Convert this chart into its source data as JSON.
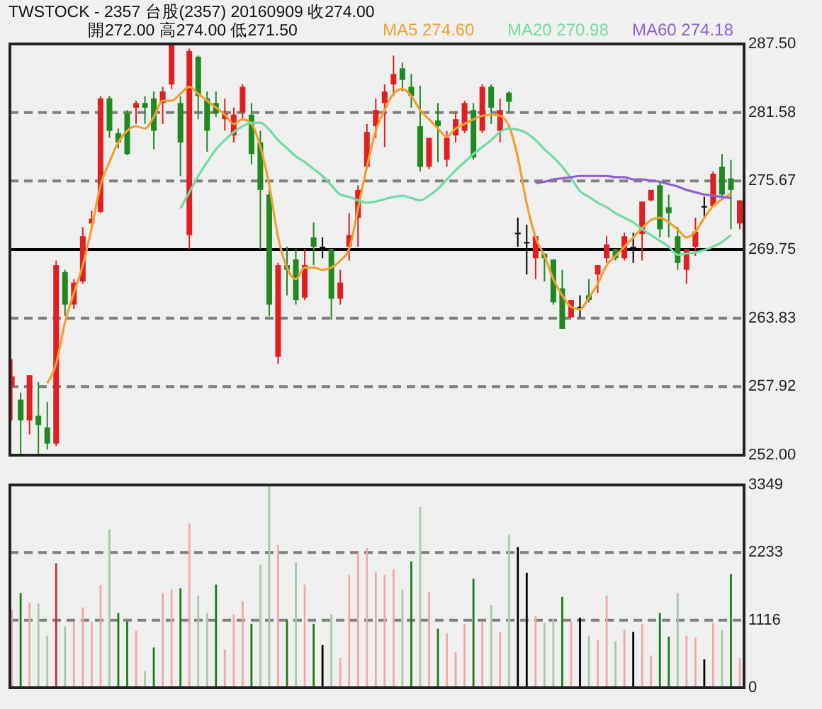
{
  "chart_data": [
    {
      "type": "candlestick",
      "title": "TWSTOCK - 2357 台股(2357) 20160909 收274.00",
      "subtitle": "開272.00 高274.00 低271.50",
      "categories": [
        null,
        null,
        null,
        null,
        null,
        null,
        null,
        null,
        null,
        null,
        null,
        null,
        null,
        null,
        null,
        null,
        null,
        null,
        null,
        null,
        null,
        null,
        null,
        null,
        null,
        null,
        null,
        null,
        null,
        null,
        null,
        null,
        null,
        null,
        null,
        null,
        null,
        null,
        null,
        null,
        null,
        null,
        null,
        null,
        null,
        null,
        null,
        null,
        null,
        null,
        null,
        null,
        null,
        null,
        null,
        null,
        null,
        null,
        null,
        null,
        null,
        null,
        null,
        null,
        null,
        null,
        null,
        null,
        null,
        null,
        null,
        null,
        null,
        null,
        null,
        null,
        null,
        null,
        null,
        null,
        null,
        null,
        null
      ],
      "ohlc": [
        [
          258.0,
          260.3,
          255.0,
          258.8
        ],
        [
          256.8,
          257.4,
          252.0,
          255.0
        ],
        [
          255.0,
          258.9,
          253.8,
          258.9
        ],
        [
          255.4,
          258.3,
          252.0,
          254.6
        ],
        [
          254.4,
          256.6,
          252.5,
          253.0
        ],
        [
          253.0,
          268.8,
          252.8,
          268.4
        ],
        [
          267.8,
          268.0,
          264.0,
          265.0
        ],
        [
          265.0,
          267.2,
          264.6,
          266.9
        ],
        [
          267.0,
          271.7,
          266.8,
          270.9
        ],
        [
          272.0,
          273.1,
          271.7,
          272.4
        ],
        [
          273.0,
          283.0,
          272.9,
          282.8
        ],
        [
          282.8,
          283.0,
          279.4,
          280.0
        ],
        [
          279.8,
          280.2,
          278.5,
          279.0
        ],
        [
          281.5,
          281.8,
          277.9,
          278.0
        ],
        [
          282.0,
          282.6,
          280.6,
          282.4
        ],
        [
          282.4,
          283.0,
          280.6,
          282.0
        ],
        [
          282.8,
          283.4,
          278.4,
          280.0
        ],
        [
          282.4,
          283.8,
          280.6,
          283.4
        ],
        [
          284.0,
          287.5,
          283.6,
          287.4
        ],
        [
          282.4,
          283.0,
          276.1,
          279.0
        ],
        [
          271.0,
          287.1,
          269.8,
          286.9
        ],
        [
          286.4,
          286.5,
          281.0,
          283.0
        ],
        [
          282.8,
          283.4,
          278.2,
          280.0
        ],
        [
          282.4,
          283.4,
          281.2,
          281.5
        ],
        [
          281.0,
          282.8,
          280.0,
          281.5
        ],
        [
          279.6,
          282.0,
          279.0,
          281.4
        ],
        [
          281.6,
          284.0,
          281.0,
          283.8
        ],
        [
          281.4,
          282.4,
          277.1,
          278.0
        ],
        [
          279.0,
          280.0,
          269.8,
          274.9
        ],
        [
          274.5,
          274.9,
          264.0,
          265.0
        ],
        [
          260.5,
          268.6,
          259.9,
          268.4
        ],
        [
          268.4,
          270.0,
          265.8,
          268.0
        ],
        [
          268.9,
          269.8,
          265.0,
          265.4
        ],
        [
          265.6,
          269.8,
          265.4,
          268.4
        ],
        [
          270.8,
          272.1,
          268.4,
          270.0
        ],
        [
          270.0,
          270.8,
          269.0,
          270.0
        ],
        [
          269.8,
          269.8,
          263.7,
          265.5
        ],
        [
          265.5,
          268.0,
          265.0,
          266.9
        ],
        [
          270.0,
          272.9,
          268.8,
          271.0
        ],
        [
          272.5,
          275.3,
          270.0,
          274.9
        ],
        [
          276.9,
          280.6,
          276.7,
          279.9
        ],
        [
          280.4,
          282.8,
          279.4,
          281.8
        ],
        [
          282.4,
          284.0,
          278.6,
          283.4
        ],
        [
          284.0,
          286.5,
          283.0,
          284.9
        ],
        [
          285.4,
          285.9,
          283.4,
          284.4
        ],
        [
          283.8,
          284.9,
          282.0,
          283.0
        ],
        [
          280.4,
          283.9,
          276.5,
          276.9
        ],
        [
          276.9,
          279.4,
          276.7,
          279.4
        ],
        [
          280.9,
          282.4,
          277.3,
          280.4
        ],
        [
          277.5,
          280.0,
          276.9,
          279.4
        ],
        [
          279.6,
          281.6,
          279.0,
          281.0
        ],
        [
          280.0,
          282.6,
          279.8,
          282.4
        ],
        [
          281.8,
          282.4,
          277.5,
          277.7
        ],
        [
          280.0,
          284.0,
          279.8,
          283.8
        ],
        [
          283.8,
          284.0,
          280.6,
          282.0
        ],
        [
          280.0,
          282.8,
          279.0,
          281.8
        ],
        [
          283.3,
          283.4,
          281.6,
          282.5
        ],
        [
          271.2,
          272.5,
          270.0,
          271.2
        ],
        [
          270.4,
          271.9,
          267.6,
          270.4
        ],
        [
          269.0,
          270.9,
          267.2,
          270.9
        ],
        [
          269.4,
          269.4,
          267.0,
          269.0
        ],
        [
          268.9,
          268.9,
          265.0,
          265.2
        ],
        [
          266.4,
          268.0,
          262.9,
          262.9
        ],
        [
          263.9,
          265.4,
          263.9,
          265.4
        ],
        [
          264.8,
          265.8,
          263.9,
          264.8
        ],
        [
          265.8,
          267.2,
          265.2,
          265.4
        ],
        [
          267.6,
          268.4,
          266.0,
          268.4
        ],
        [
          269.0,
          270.9,
          268.6,
          270.2
        ],
        [
          269.8,
          269.8,
          268.8,
          269.0
        ],
        [
          269.0,
          271.2,
          268.8,
          270.9
        ],
        [
          270.0,
          271.2,
          268.6,
          270.0
        ],
        [
          271.1,
          273.9,
          268.8,
          273.9
        ],
        [
          274.0,
          274.9,
          273.9,
          274.9
        ],
        [
          275.3,
          275.5,
          270.8,
          271.5
        ],
        [
          273.4,
          274.5,
          270.8,
          272.9
        ],
        [
          270.9,
          271.7,
          268.0,
          268.6
        ],
        [
          268.0,
          269.8,
          266.8,
          269.8
        ],
        [
          270.0,
          272.5,
          269.2,
          271.3
        ],
        [
          273.5,
          274.3,
          272.5,
          273.5
        ],
        [
          273.5,
          276.5,
          273.5,
          276.3
        ],
        [
          276.9,
          278.0,
          274.1,
          274.5
        ],
        [
          275.9,
          277.5,
          271.5,
          274.9
        ],
        [
          272.0,
          274.0,
          271.5,
          274.0
        ]
      ],
      "colors": [
        "#e02020",
        "#208a20",
        "#e02020",
        "#208a20",
        "#208a20",
        "#e02020",
        "#208a20",
        "#e02020",
        "#e02020",
        "#e02020",
        "#e02020",
        "#208a20",
        "#208a20",
        "#208a20",
        "#e02020",
        "#208a20",
        "#208a20",
        "#e02020",
        "#e02020",
        "#208a20",
        "#e02020",
        "#208a20",
        "#208a20",
        "#208a20",
        "#e02020",
        "#e02020",
        "#e02020",
        "#208a20",
        "#208a20",
        "#208a20",
        "#e02020",
        "#208a20",
        "#208a20",
        "#e02020",
        "#208a20",
        "#000000",
        "#208a20",
        "#e02020",
        "#e02020",
        "#e02020",
        "#e02020",
        "#e02020",
        "#e02020",
        "#e02020",
        "#208a20",
        "#208a20",
        "#208a20",
        "#e02020",
        "#208a20",
        "#e02020",
        "#e02020",
        "#e02020",
        "#208a20",
        "#e02020",
        "#208a20",
        "#e02020",
        "#208a20",
        "#000000",
        "#000000",
        "#e02020",
        "#208a20",
        "#208a20",
        "#208a20",
        "#e02020",
        "#000000",
        "#208a20",
        "#e02020",
        "#e02020",
        "#208a20",
        "#e02020",
        "#000000",
        "#e02020",
        "#e02020",
        "#208a20",
        "#208a20",
        "#208a20",
        "#e02020",
        "#e02020",
        "#000000",
        "#e02020",
        "#208a20",
        "#208a20",
        "#e02020"
      ],
      "series": [
        {
          "type": "line",
          "name": "MA5 274.60",
          "color": "#f0a030",
          "values": [
            null,
            null,
            null,
            null,
            258.2,
            259.9,
            263.5,
            266.0,
            268.4,
            271.6,
            275.3,
            277.3,
            279.0,
            280.0,
            280.4,
            280.2,
            281.2,
            282.6,
            282.6,
            283.2,
            283.8,
            283.2,
            282.6,
            282.0,
            281.4,
            280.6,
            281.0,
            280.6,
            278.6,
            275.3,
            270.8,
            268.2,
            267.2,
            268.2,
            268.2,
            268.0,
            268.2,
            268.8,
            269.8,
            273.3,
            276.9,
            280.0,
            281.8,
            283.2,
            283.6,
            283.0,
            281.8,
            281.0,
            280.2,
            279.5,
            280.2,
            280.6,
            281.0,
            281.3,
            281.4,
            281.3,
            280.4,
            277.7,
            273.7,
            270.8,
            269.2,
            267.2,
            265.8,
            264.8,
            264.6,
            265.6,
            266.8,
            268.4,
            269.2,
            270.0,
            270.8,
            271.6,
            272.3,
            272.5,
            272.1,
            271.5,
            270.8,
            271.3,
            272.5,
            273.5,
            274.1,
            274.6,
            null
          ]
        },
        {
          "type": "line",
          "name": "MA20 270.98",
          "color": "#70dca0",
          "values": [
            null,
            null,
            null,
            null,
            null,
            null,
            null,
            null,
            null,
            null,
            null,
            null,
            null,
            null,
            null,
            null,
            null,
            null,
            null,
            273.3,
            274.7,
            276.1,
            277.3,
            278.4,
            279.2,
            279.9,
            280.4,
            280.7,
            280.7,
            280.1,
            279.2,
            278.5,
            277.8,
            277.3,
            276.7,
            276.1,
            275.3,
            274.5,
            274.3,
            274.0,
            273.8,
            273.9,
            274.1,
            274.3,
            274.4,
            274.2,
            274.0,
            274.4,
            275.0,
            275.8,
            276.6,
            277.3,
            278.0,
            278.6,
            279.2,
            279.9,
            280.2,
            280.1,
            279.8,
            279.2,
            278.4,
            277.7,
            276.9,
            275.9,
            274.8,
            274.3,
            273.8,
            273.4,
            272.9,
            272.5,
            272.1,
            271.5,
            271.0,
            270.5,
            270.0,
            269.3,
            269.4,
            269.5,
            269.7,
            270.0,
            270.4,
            271.0,
            null
          ]
        },
        {
          "type": "line",
          "name": "MA60 274.18",
          "color": "#9060d0",
          "values": [
            null,
            null,
            null,
            null,
            null,
            null,
            null,
            null,
            null,
            null,
            null,
            null,
            null,
            null,
            null,
            null,
            null,
            null,
            null,
            null,
            null,
            null,
            null,
            null,
            null,
            null,
            null,
            null,
            null,
            null,
            null,
            null,
            null,
            null,
            null,
            null,
            null,
            null,
            null,
            null,
            null,
            null,
            null,
            null,
            null,
            null,
            null,
            null,
            null,
            null,
            null,
            null,
            null,
            null,
            null,
            null,
            null,
            null,
            null,
            275.5,
            275.6,
            275.8,
            275.9,
            276.0,
            276.1,
            276.1,
            276.1,
            276.1,
            276.0,
            276.0,
            275.8,
            275.8,
            275.7,
            275.6,
            275.4,
            275.2,
            274.9,
            274.7,
            274.5,
            274.4,
            274.3,
            274.2,
            null
          ]
        }
      ],
      "ylim": [
        252,
        287.5
      ],
      "yticks": [
        {
          "value": 252,
          "label": "252.00"
        },
        {
          "value": 257.92,
          "label": "257.92"
        },
        {
          "value": 263.83,
          "label": "263.83"
        },
        {
          "value": 269.75,
          "label": "269.75"
        },
        {
          "value": 275.67,
          "label": "275.67"
        },
        {
          "value": 281.58,
          "label": "281.58"
        },
        {
          "value": 287.5,
          "label": "287.50"
        }
      ],
      "grid": "y",
      "legend": "top",
      "tick_labels": "y",
      "ref_lines": [
        {
          "axis": "y",
          "value": 269.75,
          "label": null,
          "color": "#000000",
          "line_style": "solid"
        }
      ]
    },
    {
      "type": "bar",
      "categories": [
        null,
        null,
        null,
        null,
        null,
        null,
        null,
        null,
        null,
        null,
        null,
        null,
        null,
        null,
        null,
        null,
        null,
        null,
        null,
        null,
        null,
        null,
        null,
        null,
        null,
        null,
        null,
        null,
        null,
        null,
        null,
        null,
        null,
        null,
        null,
        null,
        null,
        null,
        null,
        null,
        null,
        null,
        null,
        null,
        null,
        null,
        null,
        null,
        null,
        null,
        null,
        null,
        null,
        null,
        null,
        null,
        null,
        null,
        null,
        null,
        null,
        null,
        null,
        null,
        null,
        null,
        null,
        null,
        null,
        null,
        null,
        null,
        null,
        null,
        null,
        null,
        null,
        null,
        null,
        null,
        null,
        null,
        null
      ],
      "values": [
        1290,
        1563,
        1407,
        1391,
        860,
        2056,
        1016,
        1094,
        1329,
        1094,
        1696,
        2618,
        1235,
        1094,
        938,
        274,
        664,
        1563,
        1618,
        1642,
        2712,
        1524,
        1235,
        1704,
        625,
        1212,
        1430,
        1055,
        2032,
        3340,
        2360,
        1118,
        2071,
        1704,
        1055,
        704,
        1212,
        492,
        1860,
        2228,
        2306,
        1915,
        1860,
        1954,
        1618,
        2087,
        2986,
        1587,
        977,
        899,
        586,
        1055,
        1798,
        1094,
        1368,
        922,
        2525,
        2322,
        1899,
        1188,
        1071,
        1134,
        1501,
        1094,
        1157,
        860,
        782,
        1524,
        766,
        954,
        922,
        1055,
        532,
        1235,
        844,
        1563,
        860,
        821,
        469,
        1071,
        954,
        1876,
        492
      ],
      "colors": [
        "#f0a8a8",
        "#1e7a1e",
        "#f0a8a8",
        "#a8c8a8",
        "#a8c8a8",
        "#c83232",
        "#a8c8a8",
        "#f0a8a8",
        "#f0a8a8",
        "#f0a8a8",
        "#f0a8a8",
        "#a8c8a8",
        "#1e7a1e",
        "#1e7a1e",
        "#f0a8a8",
        "#a8c8a8",
        "#1e7a1e",
        "#f0a8a8",
        "#f0a8a8",
        "#1e7a1e",
        "#f0a8a8",
        "#a8c8a8",
        "#a8c8a8",
        "#1e7a1e",
        "#f0a8a8",
        "#f0a8a8",
        "#f0a8a8",
        "#1e7a1e",
        "#a8c8a8",
        "#a8c8a8",
        "#f0a8a8",
        "#1e7a1e",
        "#a8c8a8",
        "#f0a8a8",
        "#1e7a1e",
        "#000000",
        "#a8c8a8",
        "#f0a8a8",
        "#f0a8a8",
        "#f0a8a8",
        "#f0a8a8",
        "#f0a8a8",
        "#f0a8a8",
        "#f0a8a8",
        "#a8c8a8",
        "#1e7a1e",
        "#a8c8a8",
        "#f0a8a8",
        "#1e7a1e",
        "#f0a8a8",
        "#f0a8a8",
        "#f0a8a8",
        "#1e7a1e",
        "#f0a8a8",
        "#a8c8a8",
        "#f0a8a8",
        "#a8c8a8",
        "#000000",
        "#000000",
        "#f0a8a8",
        "#a8c8a8",
        "#a8c8a8",
        "#1e7a1e",
        "#f0a8a8",
        "#000000",
        "#a8c8a8",
        "#f0a8a8",
        "#f0a8a8",
        "#a8c8a8",
        "#f0a8a8",
        "#000000",
        "#f0a8a8",
        "#f0a8a8",
        "#1e7a1e",
        "#1e7a1e",
        "#a8c8a8",
        "#f0a8a8",
        "#f0a8a8",
        "#000000",
        "#f0a8a8",
        "#a8c8a8",
        "#1e7a1e",
        "#f0a8a8"
      ],
      "ylim": [
        0,
        3349
      ],
      "yticks": [
        0,
        1116,
        2233,
        3349
      ],
      "grid": "y",
      "tick_labels": "y"
    }
  ]
}
